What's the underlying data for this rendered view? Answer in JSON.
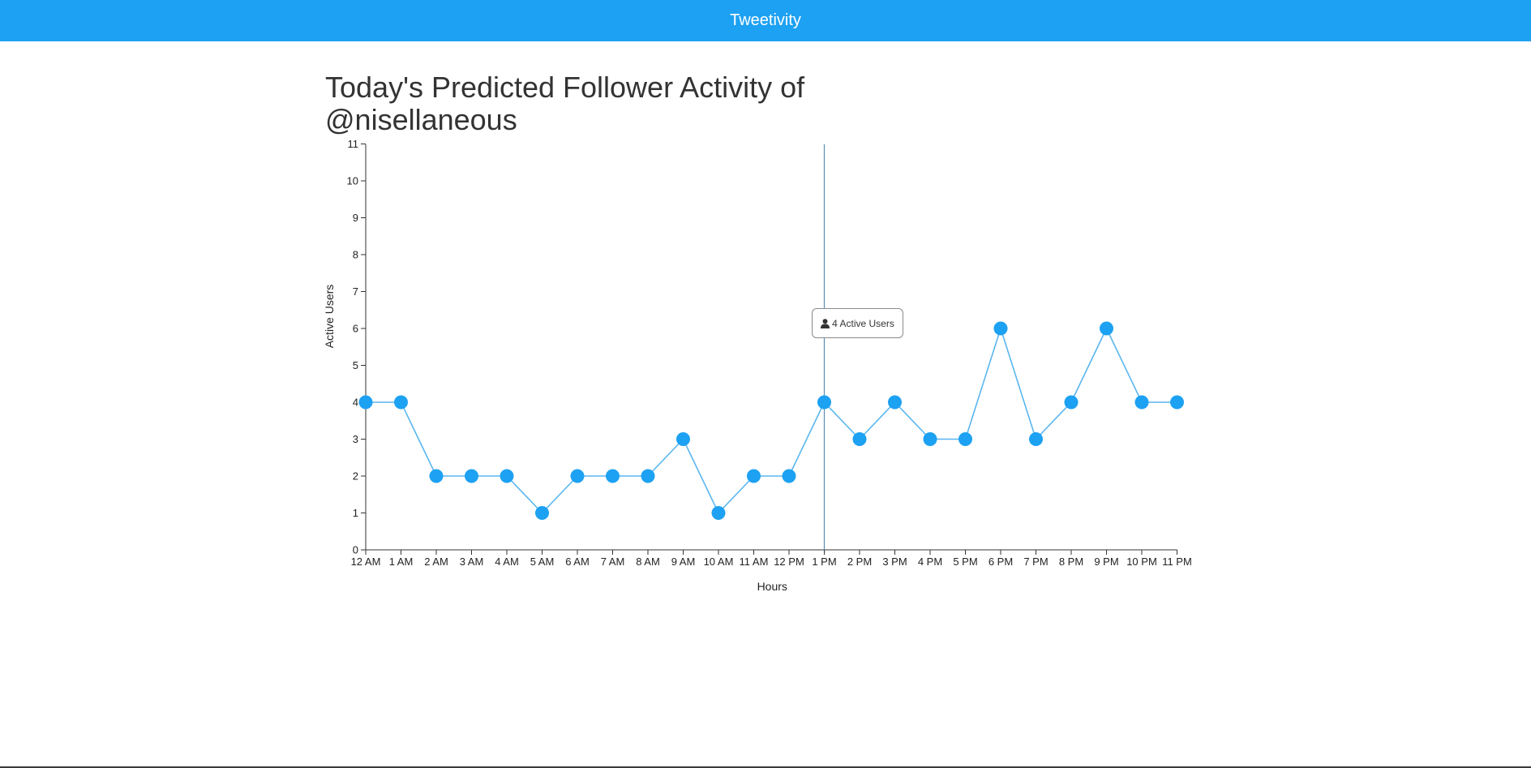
{
  "navbar": {
    "brand": "Tweetivity"
  },
  "page": {
    "title": "Today's Predicted Follower Activity of @nisellaneous"
  },
  "tooltip": {
    "icon": "user-icon",
    "text": "4 Active Users"
  },
  "colors": {
    "brand": "#1da1f2",
    "line": "#5ab6ef",
    "point": "#1da1f2",
    "axis": "#333333",
    "focus_line": "#5b8fb4"
  },
  "chart_data": {
    "type": "line",
    "xlabel": "Hours",
    "ylabel": "Active Users",
    "categories": [
      "12 AM",
      "1 AM",
      "2 AM",
      "3 AM",
      "4 AM",
      "5 AM",
      "6 AM",
      "7 AM",
      "8 AM",
      "9 AM",
      "10 AM",
      "11 AM",
      "12 PM",
      "1 PM",
      "2 PM",
      "3 PM",
      "4 PM",
      "5 PM",
      "6 PM",
      "7 PM",
      "8 PM",
      "9 PM",
      "10 PM",
      "11 PM"
    ],
    "values": [
      4,
      4,
      2,
      2,
      2,
      1,
      2,
      2,
      2,
      3,
      1,
      2,
      2,
      4,
      3,
      4,
      3,
      3,
      6,
      3,
      4,
      6,
      4,
      4
    ],
    "yticks": [
      "0",
      "1",
      "2",
      "3",
      "4",
      "5",
      "6",
      "7",
      "8",
      "9",
      "10",
      "11"
    ],
    "ylim": [
      0,
      11
    ],
    "grid": false,
    "highlighted": "1 PM"
  }
}
